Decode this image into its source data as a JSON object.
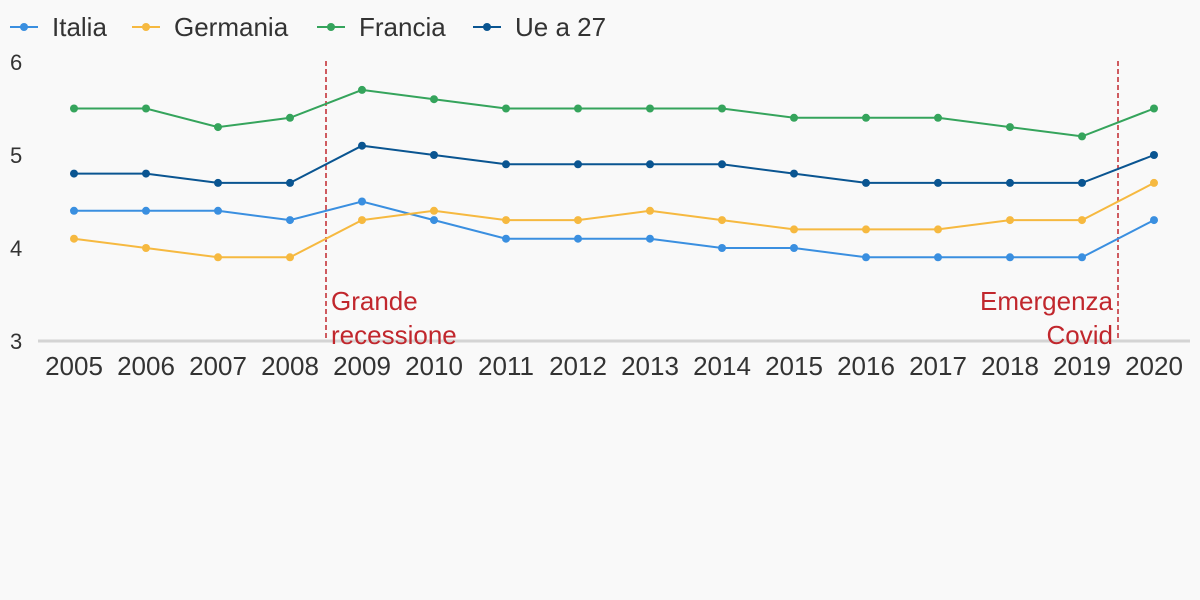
{
  "chart_data": {
    "type": "line",
    "title": "",
    "xlabel": "",
    "ylabel": "",
    "x": [
      "2005",
      "2006",
      "2007",
      "2008",
      "2009",
      "2010",
      "2011",
      "2012",
      "2013",
      "2014",
      "2015",
      "2016",
      "2017",
      "2018",
      "2019",
      "2020"
    ],
    "ylim": [
      3,
      6
    ],
    "yticks": [
      "3",
      "4",
      "5",
      "6"
    ],
    "grid": false,
    "legend_position": "top-left",
    "series": [
      {
        "name": "Italia",
        "color": "#3a8fe0",
        "values": [
          4.4,
          4.4,
          4.4,
          4.3,
          4.5,
          4.3,
          4.1,
          4.1,
          4.1,
          4.0,
          4.0,
          3.9,
          3.9,
          3.9,
          3.9,
          4.3
        ]
      },
      {
        "name": "Germania",
        "color": "#f6b940",
        "values": [
          4.1,
          4.0,
          3.9,
          3.9,
          4.3,
          4.4,
          4.3,
          4.3,
          4.4,
          4.3,
          4.2,
          4.2,
          4.2,
          4.3,
          4.3,
          4.7
        ]
      },
      {
        "name": "Francia",
        "color": "#35a45c",
        "values": [
          5.5,
          5.5,
          5.3,
          5.4,
          5.7,
          5.6,
          5.5,
          5.5,
          5.5,
          5.5,
          5.4,
          5.4,
          5.4,
          5.3,
          5.2,
          5.5
        ]
      },
      {
        "name": "Ue a 27",
        "color": "#0a5591",
        "values": [
          4.8,
          4.8,
          4.7,
          4.7,
          5.1,
          5.0,
          4.9,
          4.9,
          4.9,
          4.9,
          4.8,
          4.7,
          4.7,
          4.7,
          4.7,
          5.0
        ]
      }
    ],
    "annotations": [
      {
        "lines": [
          "Grande",
          "recessione"
        ],
        "x_between": [
          "2008",
          "2009"
        ],
        "align": "right-of-line",
        "color": "#c1272d"
      },
      {
        "lines": [
          "Emergenza",
          "Covid"
        ],
        "x_between": [
          "2019",
          "2020"
        ],
        "align": "left-of-line",
        "color": "#c1272d"
      }
    ]
  }
}
